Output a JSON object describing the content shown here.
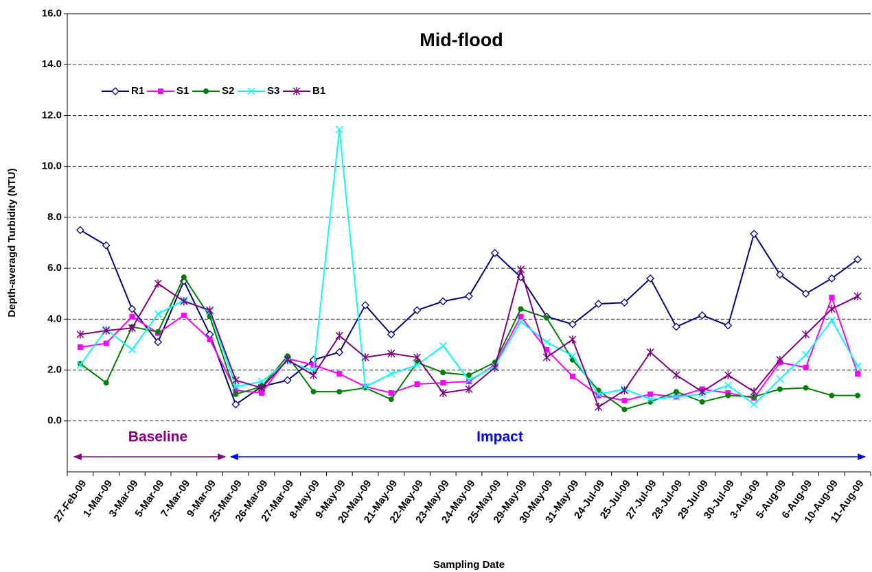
{
  "chart_data": {
    "type": "line",
    "title": "Mid-flood",
    "x_label": "Sampling Date",
    "y_label": "Depth-averagd Turbidity (NTU)",
    "categories": [
      "27-Feb-09",
      "1-Mar-09",
      "3-Mar-09",
      "5-Mar-09",
      "7-Mar-09",
      "9-Mar-09",
      "25-Mar-09",
      "26-Mar-09",
      "27-Mar-09",
      "8-May-09",
      "9-May-09",
      "20-May-09",
      "21-May-09",
      "22-May-09",
      "23-May-09",
      "24-May-09",
      "25-May-09",
      "29-May-09",
      "30-May-09",
      "31-May-09",
      "24-Jul-09",
      "25-Jul-09",
      "27-Jul-09",
      "28-Jul-09",
      "29-Jul-09",
      "30-Jul-09",
      "3-Aug-09",
      "5-Aug-09",
      "6-Aug-09",
      "10-Aug-09",
      "11-Aug-09"
    ],
    "series": [
      {
        "name": "R1",
        "color": "#000080",
        "marker": "diamond",
        "values": [
          7.5,
          6.9,
          4.4,
          3.1,
          5.5,
          3.4,
          0.65,
          1.35,
          1.6,
          2.4,
          2.7,
          4.55,
          3.4,
          4.35,
          4.7,
          4.9,
          6.6,
          5.65,
          4.1,
          3.8,
          4.6,
          4.65,
          5.6,
          3.7,
          4.15,
          3.75,
          7.35,
          5.75,
          5.0,
          5.6,
          6.35
        ]
      },
      {
        "name": "S1",
        "color": "#ff00ff",
        "marker": "square",
        "values": [
          2.9,
          3.05,
          4.1,
          3.45,
          4.15,
          3.2,
          1.2,
          1.1,
          2.45,
          2.2,
          1.85,
          1.35,
          1.1,
          1.45,
          1.5,
          1.55,
          2.2,
          4.1,
          2.8,
          1.75,
          1.0,
          0.8,
          1.05,
          0.95,
          1.25,
          1.1,
          0.9,
          2.3,
          2.1,
          4.85,
          1.85
        ]
      },
      {
        "name": "S2",
        "color": "#008000",
        "marker": "circle",
        "values": [
          2.25,
          1.5,
          3.7,
          3.5,
          5.65,
          4.1,
          1.05,
          1.35,
          2.55,
          1.15,
          1.15,
          1.3,
          0.85,
          2.3,
          1.9,
          1.8,
          2.3,
          4.4,
          4.05,
          2.4,
          1.2,
          0.45,
          0.75,
          1.15,
          0.75,
          1.0,
          0.95,
          1.25,
          1.3,
          1.0,
          1.0
        ]
      },
      {
        "name": "S3",
        "color": "#00ffff",
        "marker": "x",
        "values": [
          2.2,
          3.6,
          2.8,
          4.2,
          4.75,
          4.3,
          1.35,
          1.55,
          2.35,
          1.95,
          11.45,
          1.35,
          1.85,
          2.2,
          2.95,
          1.6,
          2.15,
          3.9,
          3.1,
          2.55,
          1.05,
          1.25,
          0.85,
          0.95,
          1.05,
          1.4,
          0.65,
          1.65,
          2.6,
          3.95,
          2.15
        ]
      },
      {
        "name": "B1",
        "color": "#800080",
        "marker": "star",
        "values": [
          3.4,
          3.55,
          3.65,
          5.4,
          4.7,
          4.35,
          1.6,
          1.3,
          2.4,
          1.8,
          3.35,
          2.5,
          2.65,
          2.5,
          1.1,
          1.25,
          2.1,
          5.95,
          2.5,
          3.2,
          0.55,
          1.2,
          2.7,
          1.8,
          1.15,
          1.8,
          1.15,
          2.4,
          3.4,
          4.4,
          4.9
        ]
      }
    ],
    "ylim": [
      -2,
      16
    ],
    "yticks": [
      {
        "value": 0,
        "label": "0.0"
      },
      {
        "value": 2,
        "label": "2.0"
      },
      {
        "value": 4,
        "label": "4.0"
      },
      {
        "value": 6,
        "label": "6.0"
      },
      {
        "value": 8,
        "label": "8.0"
      },
      {
        "value": 10,
        "label": "10.0"
      },
      {
        "value": 12,
        "label": "12.0"
      },
      {
        "value": 14,
        "label": "14.0"
      },
      {
        "value": 16,
        "label": "16.0"
      }
    ],
    "grid": true,
    "annotations": [
      {
        "text": "Baseline",
        "color": "#800080"
      },
      {
        "text": "Impact",
        "color": "#0000ff"
      }
    ]
  }
}
